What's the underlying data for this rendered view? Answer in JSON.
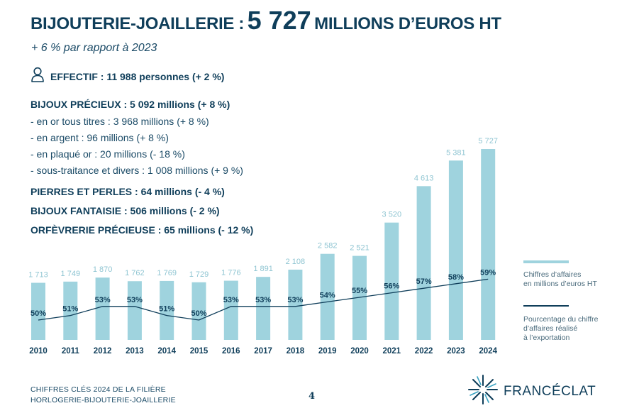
{
  "header": {
    "title_part1": "BIJOUTERIE-JOAILLERIE :",
    "title_value": "5 727",
    "title_part2": "MILLIONS D’EUROS HT",
    "subtitle": "+ 6 % par rapport à 2023"
  },
  "effectif": {
    "icon": "person-icon",
    "label": "EFFECTIF : 11 988 personnes (+ 2 %)"
  },
  "bijoux_precieux": {
    "heading": "BIJOUX PRÉCIEUX : 5 092 millions (+ 8 %)",
    "items": [
      "- en or tous titres : 3 968 millions (+ 8 %)",
      "- en argent : 96 millions (+ 8 %)",
      "- en plaqué or : 20 millions (- 18 %)",
      "- sous-traitance et divers : 1 008 millions (+ 9 %)"
    ]
  },
  "categories": [
    "PIERRES ET PERLES : 64 millions (- 4 %)",
    "BIJOUX FANTAISIE : 506 millions (- 2 %)",
    "ORFÈVRERIE PRÉCIEUSE : 65 millions (- 12 %)"
  ],
  "chart_data": {
    "type": "bar",
    "categories": [
      "2010",
      "2011",
      "2012",
      "2013",
      "2014",
      "2015",
      "2016",
      "2017",
      "2018",
      "2019",
      "2020",
      "2021",
      "2022",
      "2023",
      "2024"
    ],
    "series": [
      {
        "name": "Chiffres d’affaires en millions d’euros HT",
        "values": [
          1713,
          1749,
          1870,
          1762,
          1769,
          1729,
          1776,
          1891,
          2108,
          2582,
          2521,
          3520,
          4613,
          5381,
          5727
        ],
        "labels": [
          "1 713",
          "1 749",
          "1 870",
          "1 762",
          "1 769",
          "1 729",
          "1 776",
          "1 891",
          "2 108",
          "2 582",
          "2 521",
          "3 520",
          "4 613",
          "5 381",
          "5 727"
        ],
        "color": "#9fd3de"
      },
      {
        "name": "Pourcentage du chiffre d’affaires réalisé à l’exportation",
        "values": [
          50,
          51,
          53,
          53,
          51,
          50,
          53,
          53,
          53,
          54,
          55,
          56,
          57,
          58,
          59
        ],
        "labels": [
          "50%",
          "51%",
          "53%",
          "53%",
          "51%",
          "50%",
          "53%",
          "53%",
          "53%",
          "54%",
          "55%",
          "56%",
          "57%",
          "58%",
          "59%"
        ],
        "color": "#0f3e5a"
      }
    ],
    "legend": [
      {
        "lines": [
          "Chiffres d’affaires",
          "en millions d’euros HT"
        ],
        "color": "#9fd3de"
      },
      {
        "lines": [
          "Pourcentage du chiffre",
          "d’affaires réalisé",
          "à l’exportation"
        ],
        "color": "#0f3e5a"
      }
    ],
    "legend_position": "right",
    "grid": false
  },
  "footer": {
    "line1": "CHIFFRES CLÉS 2024 DE LA FILIÈRE",
    "line2": "HORLOGERIE-BIJOUTERIE-JOAILLERIE",
    "page": "4",
    "brand": "FRANCÉCLAT",
    "brand_icon": "star-burst-logo-icon"
  }
}
